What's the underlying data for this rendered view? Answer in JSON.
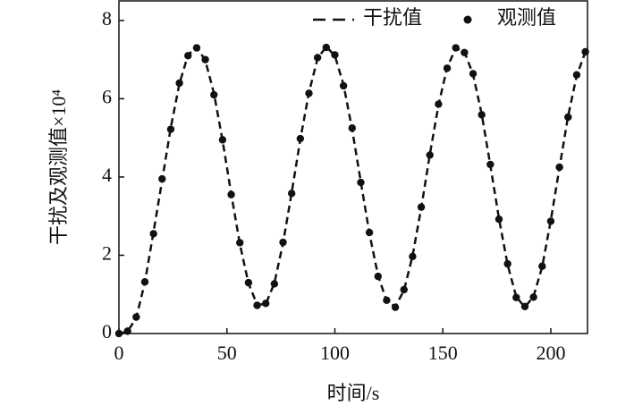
{
  "chart_data": {
    "type": "line-scatter",
    "xlabel": "时间/s",
    "ylabel": "干扰及观测值×10⁴",
    "x": [
      0,
      4,
      8,
      12,
      16,
      20,
      24,
      28,
      32,
      36,
      40,
      44,
      48,
      52,
      56,
      60,
      64,
      68,
      72,
      76,
      80,
      84,
      88,
      92,
      96,
      100,
      104,
      108,
      112,
      116,
      120,
      124,
      128,
      132,
      136,
      140,
      144,
      148,
      152,
      156,
      160,
      164,
      168,
      172,
      176,
      180,
      184,
      188,
      192,
      196,
      200,
      204,
      208,
      212,
      216
    ],
    "series": [
      {
        "name": "干扰值",
        "color": "#111111",
        "style": "dashed",
        "values": [
          0,
          0.05,
          0.4,
          1.3,
          2.59,
          3.91,
          5.26,
          6.38,
          7.12,
          7.32,
          6.98,
          6.14,
          4.93,
          3.57,
          2.29,
          1.28,
          0.74,
          0.75,
          1.29,
          2.31,
          3.6,
          4.96,
          6.16,
          7.03,
          7.33,
          7.1,
          6.36,
          5.22,
          3.88,
          2.56,
          1.48,
          0.83,
          0.69,
          1.1,
          1.99,
          3.21,
          4.58,
          5.84,
          6.8,
          7.29,
          7.2,
          6.62,
          5.61,
          4.3,
          2.94,
          1.76,
          0.94,
          0.67,
          0.95,
          1.7,
          2.89,
          4.23,
          5.55,
          6.59,
          7.19
        ]
      },
      {
        "name": "观测值",
        "color": "#111111",
        "style": "dots",
        "values": [
          0,
          0.06,
          0.42,
          1.32,
          2.55,
          3.95,
          5.22,
          6.4,
          7.1,
          7.3,
          7.0,
          6.1,
          4.95,
          3.55,
          2.32,
          1.3,
          0.72,
          0.77,
          1.27,
          2.33,
          3.58,
          4.98,
          6.14,
          7.05,
          7.31,
          7.12,
          6.33,
          5.25,
          3.86,
          2.58,
          1.46,
          0.85,
          0.67,
          1.12,
          1.97,
          3.23,
          4.56,
          5.86,
          6.78,
          7.3,
          7.18,
          6.64,
          5.59,
          4.32,
          2.92,
          1.78,
          0.92,
          0.69,
          0.93,
          1.72,
          2.87,
          4.25,
          5.53,
          6.61,
          7.2
        ]
      }
    ],
    "xlim": [
      0,
      217
    ],
    "xticks": [
      0,
      50,
      100,
      150,
      200
    ],
    "ylim": [
      0,
      8.5
    ],
    "yticks": [
      0,
      2,
      4,
      6,
      8
    ],
    "legend": "upper right"
  }
}
